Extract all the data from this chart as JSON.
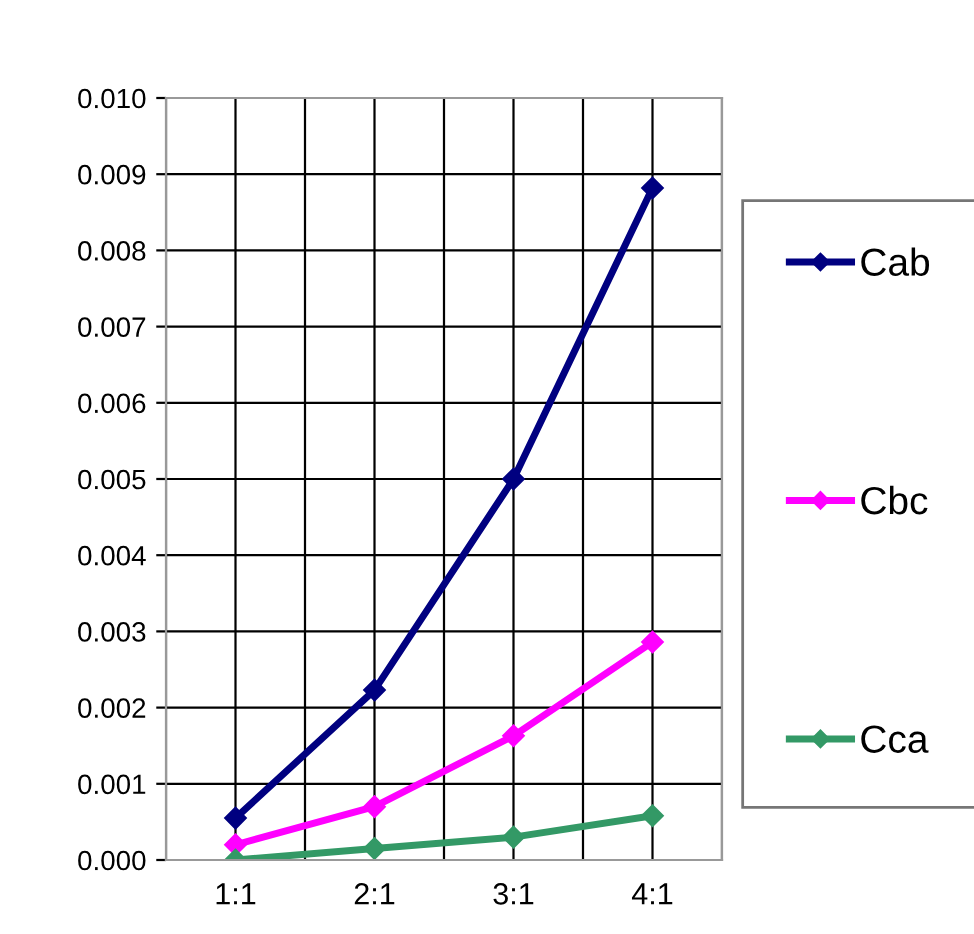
{
  "chart_data": {
    "type": "line",
    "categories": [
      "1:1",
      "2:1",
      "3:1",
      "4:1"
    ],
    "series": [
      {
        "name": "Cab",
        "color": "#000080",
        "values": [
          0.00055,
          0.00223,
          0.005,
          0.00882
        ]
      },
      {
        "name": "Cbc",
        "color": "#ff00ff",
        "values": [
          0.0002,
          0.0007,
          0.00163,
          0.00286
        ]
      },
      {
        "name": "Cca",
        "color": "#339966",
        "values": [
          0.0,
          0.00015,
          0.0003,
          0.00058
        ]
      }
    ],
    "ylim": [
      0,
      0.01
    ],
    "yticks": [
      {
        "value": 0,
        "label": "0.000"
      },
      {
        "value": 0.001,
        "label": "0.001"
      },
      {
        "value": 0.002,
        "label": "0.002"
      },
      {
        "value": 0.003,
        "label": "0.003"
      },
      {
        "value": 0.004,
        "label": "0.004"
      },
      {
        "value": 0.005,
        "label": "0.005"
      },
      {
        "value": 0.006,
        "label": "0.006"
      },
      {
        "value": 0.007,
        "label": "0.007"
      },
      {
        "value": 0.008,
        "label": "0.008"
      },
      {
        "value": 0.009,
        "label": "0.009"
      },
      {
        "value": 0.01,
        "label": "0.010"
      }
    ],
    "grid": true,
    "legend": "right",
    "marker": "diamond",
    "line_style": "solid"
  }
}
